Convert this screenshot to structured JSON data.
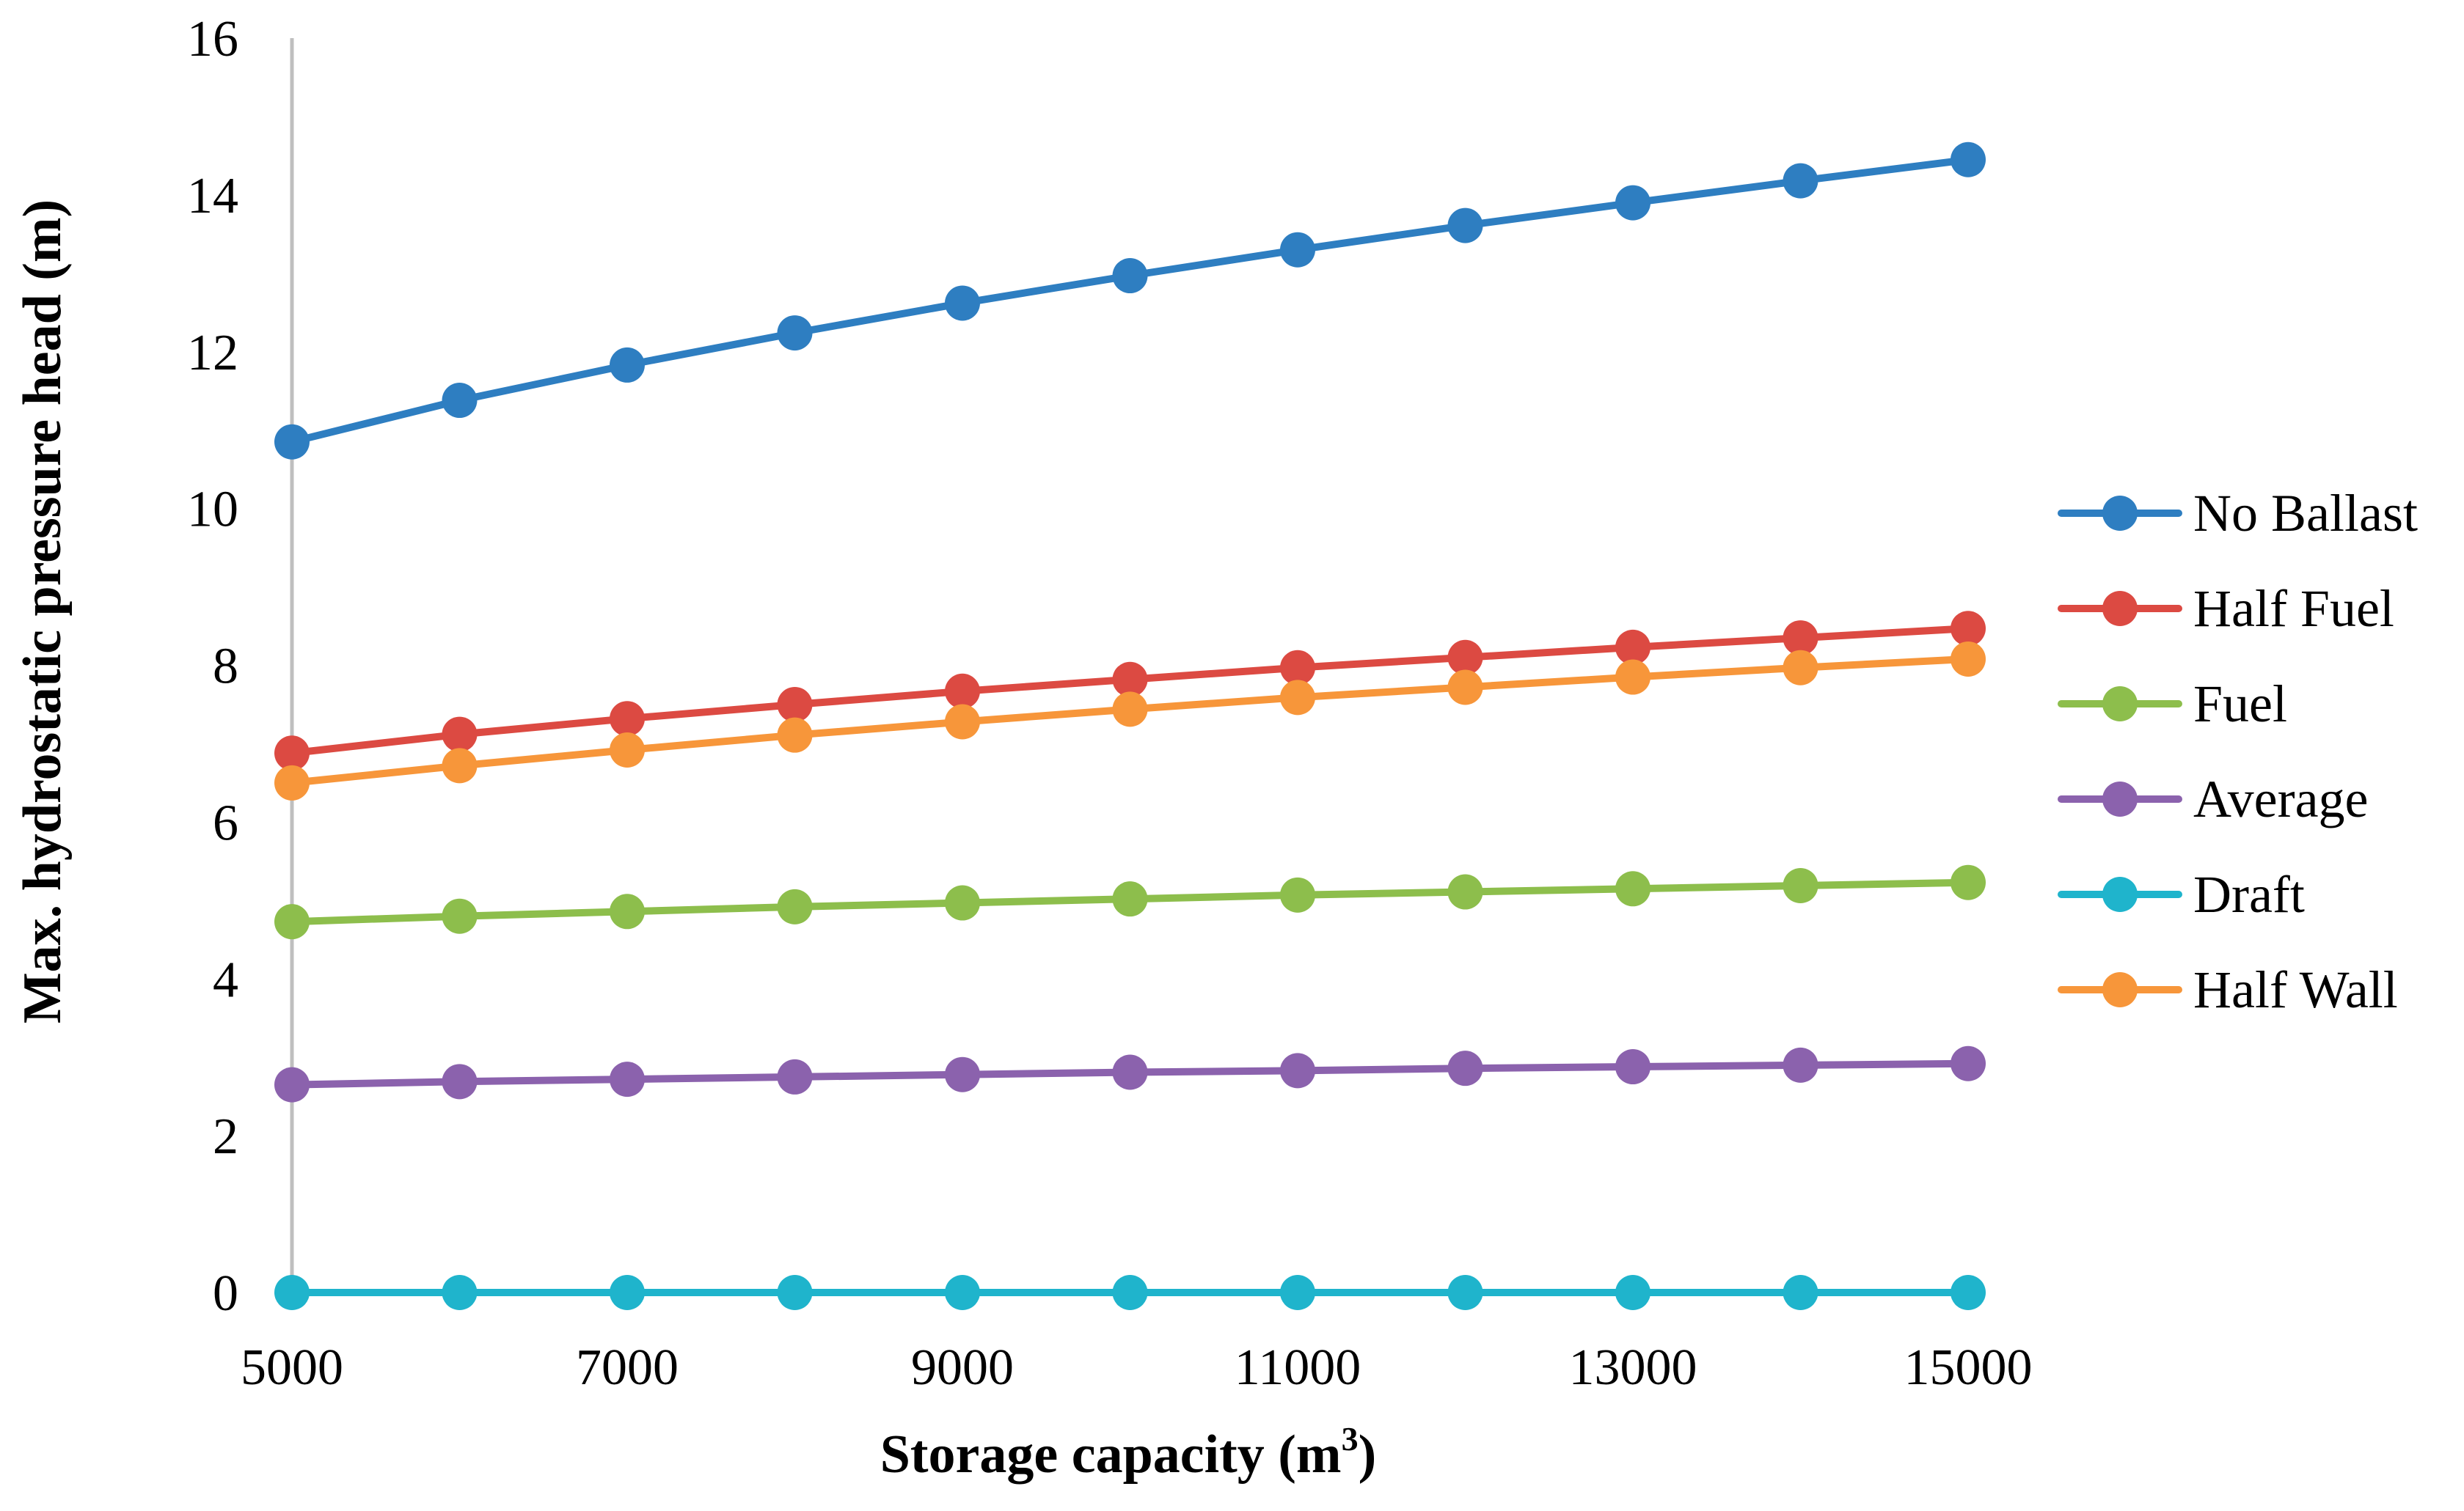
{
  "chart_data": {
    "type": "line",
    "title": "",
    "xlabel": "Storage capacity (m",
    "xlabel_sup": "3",
    "xlabel_suffix": ")",
    "ylabel": "Max. hydrostatic pressure head (m)",
    "x": [
      5000,
      6000,
      7000,
      8000,
      9000,
      10000,
      11000,
      12000,
      13000,
      14000,
      15000
    ],
    "x_ticks": [
      5000,
      7000,
      9000,
      11000,
      13000,
      15000
    ],
    "y_ticks": [
      0,
      2,
      4,
      6,
      8,
      10,
      12,
      14,
      16
    ],
    "xlim": [
      5000,
      15000
    ],
    "ylim": [
      0,
      16
    ],
    "grid": false,
    "legend_position": "right",
    "series": [
      {
        "name": "No Ballast",
        "color": "#2E7EC1",
        "values": [
          10.85,
          11.38,
          11.83,
          12.24,
          12.62,
          12.97,
          13.3,
          13.61,
          13.9,
          14.18,
          14.45
        ]
      },
      {
        "name": "Half Fuel",
        "color": "#DC4A42",
        "values": [
          6.88,
          7.12,
          7.32,
          7.5,
          7.67,
          7.82,
          7.97,
          8.1,
          8.23,
          8.35,
          8.47
        ]
      },
      {
        "name": "Fuel",
        "color": "#8DBE4C",
        "values": [
          4.73,
          4.8,
          4.86,
          4.92,
          4.97,
          5.02,
          5.07,
          5.11,
          5.15,
          5.19,
          5.23
        ]
      },
      {
        "name": "Average",
        "color": "#8B62AD",
        "values": [
          2.65,
          2.69,
          2.72,
          2.75,
          2.78,
          2.81,
          2.83,
          2.86,
          2.88,
          2.9,
          2.92
        ]
      },
      {
        "name": "Draft",
        "color": "#1FB4CC",
        "values": [
          0,
          0,
          0,
          0,
          0,
          0,
          0,
          0,
          0,
          0,
          0
        ]
      },
      {
        "name": "Half Wall",
        "color": "#F7963A",
        "values": [
          6.5,
          6.72,
          6.92,
          7.11,
          7.28,
          7.44,
          7.59,
          7.72,
          7.85,
          7.97,
          8.08
        ]
      }
    ]
  }
}
